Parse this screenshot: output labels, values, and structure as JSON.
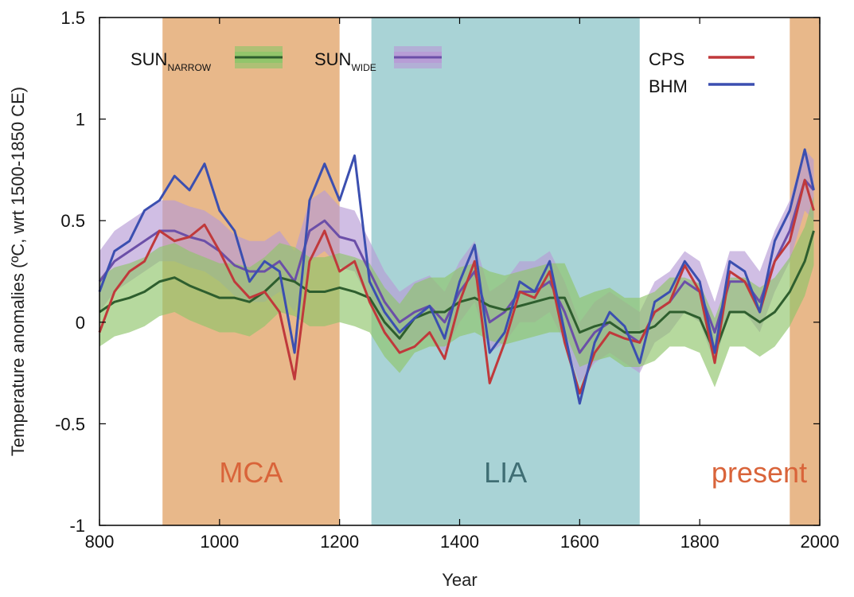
{
  "chart_data": {
    "type": "line",
    "xlabel": "Year",
    "ylabel": "Temperature anomalies (ºC, wrt 1500-1850 CE)",
    "xlim": [
      800,
      2000
    ],
    "ylim": [
      -1,
      1.5
    ],
    "x_ticks": [
      "800",
      "1000",
      "1200",
      "1400",
      "1600",
      "1800",
      "2000"
    ],
    "y_ticks": [
      "-1",
      "-0.5",
      "0",
      "0.5",
      "1",
      "1.5"
    ],
    "grid": false,
    "legend_entries": [
      {
        "main": "SUN",
        "sub": "NARROW"
      },
      {
        "main": "SUN",
        "sub": "WIDE"
      },
      {
        "main": "CPS",
        "sub": ""
      },
      {
        "main": "BHM",
        "sub": ""
      }
    ],
    "periods": [
      {
        "label": "MCA",
        "start": 905,
        "end": 1200,
        "color": "#e8b88a",
        "text_color": "#d9643a"
      },
      {
        "label": "LIA",
        "start": 1253,
        "end": 1700,
        "color": "#a9d3d6",
        "text_color": "#3f6e74"
      },
      {
        "label": "present",
        "start": 1950,
        "end": 2000,
        "color": "#e8b88a",
        "text_color": "#d9643a"
      }
    ],
    "x": [
      800,
      825,
      850,
      875,
      900,
      925,
      950,
      975,
      1000,
      1025,
      1050,
      1075,
      1100,
      1125,
      1150,
      1175,
      1200,
      1225,
      1250,
      1275,
      1300,
      1325,
      1350,
      1375,
      1400,
      1425,
      1450,
      1475,
      1500,
      1525,
      1550,
      1575,
      1600,
      1625,
      1650,
      1675,
      1700,
      1725,
      1750,
      1775,
      1800,
      1825,
      1850,
      1875,
      1900,
      1925,
      1950,
      1975,
      1990
    ],
    "series": [
      {
        "name": "CPS",
        "color": "#c0393b",
        "values": [
          -0.05,
          0.15,
          0.25,
          0.3,
          0.45,
          0.4,
          0.42,
          0.48,
          0.35,
          0.2,
          0.12,
          0.15,
          0.05,
          -0.28,
          0.3,
          0.45,
          0.25,
          0.3,
          0.1,
          -0.05,
          -0.15,
          -0.12,
          -0.05,
          -0.18,
          0.1,
          0.3,
          -0.3,
          -0.1,
          0.15,
          0.12,
          0.25,
          -0.1,
          -0.35,
          -0.15,
          -0.05,
          -0.08,
          -0.1,
          0.05,
          0.1,
          0.28,
          0.15,
          -0.2,
          0.25,
          0.2,
          0.05,
          0.3,
          0.4,
          0.7,
          0.55
        ]
      },
      {
        "name": "BHM",
        "color": "#3b4fb0",
        "values": [
          0.15,
          0.35,
          0.4,
          0.55,
          0.6,
          0.72,
          0.65,
          0.78,
          0.55,
          0.45,
          0.2,
          0.3,
          0.25,
          -0.15,
          0.6,
          0.78,
          0.6,
          0.82,
          0.2,
          0.05,
          -0.05,
          0.02,
          0.08,
          -0.08,
          0.2,
          0.38,
          -0.15,
          -0.05,
          0.2,
          0.15,
          0.3,
          -0.05,
          -0.4,
          -0.1,
          0.05,
          -0.02,
          -0.2,
          0.1,
          0.15,
          0.3,
          0.2,
          -0.15,
          0.3,
          0.25,
          0.05,
          0.4,
          0.55,
          0.85,
          0.65
        ]
      },
      {
        "name": "SUN_NARROW",
        "color": "#2e5e2e",
        "band_color": "#8fc56a",
        "values": [
          0.05,
          0.1,
          0.12,
          0.15,
          0.2,
          0.22,
          0.18,
          0.15,
          0.12,
          0.12,
          0.1,
          0.15,
          0.22,
          0.2,
          0.15,
          0.15,
          0.17,
          0.15,
          0.12,
          0.0,
          -0.08,
          0.02,
          0.05,
          0.05,
          0.1,
          0.12,
          0.08,
          0.06,
          0.08,
          0.1,
          0.12,
          0.12,
          -0.05,
          -0.02,
          0.0,
          -0.05,
          -0.05,
          -0.02,
          0.05,
          0.05,
          0.02,
          -0.15,
          0.05,
          0.05,
          0.0,
          0.05,
          0.15,
          0.3,
          0.45
        ],
        "band_halfwidth": 0.17
      },
      {
        "name": "SUN_WIDE",
        "color": "#6b4fa8",
        "band_color": "#b79bd6",
        "values": [
          0.2,
          0.3,
          0.35,
          0.4,
          0.45,
          0.45,
          0.42,
          0.4,
          0.35,
          0.28,
          0.25,
          0.25,
          0.3,
          0.2,
          0.45,
          0.5,
          0.42,
          0.4,
          0.25,
          0.1,
          0.0,
          0.05,
          0.08,
          0.0,
          0.15,
          0.25,
          0.0,
          0.05,
          0.15,
          0.15,
          0.2,
          0.05,
          -0.15,
          -0.05,
          0.0,
          -0.05,
          -0.1,
          0.05,
          0.1,
          0.2,
          0.15,
          -0.05,
          0.2,
          0.2,
          0.1,
          0.3,
          0.45,
          0.7,
          0.65
        ],
        "band_halfwidth": 0.15
      }
    ]
  }
}
